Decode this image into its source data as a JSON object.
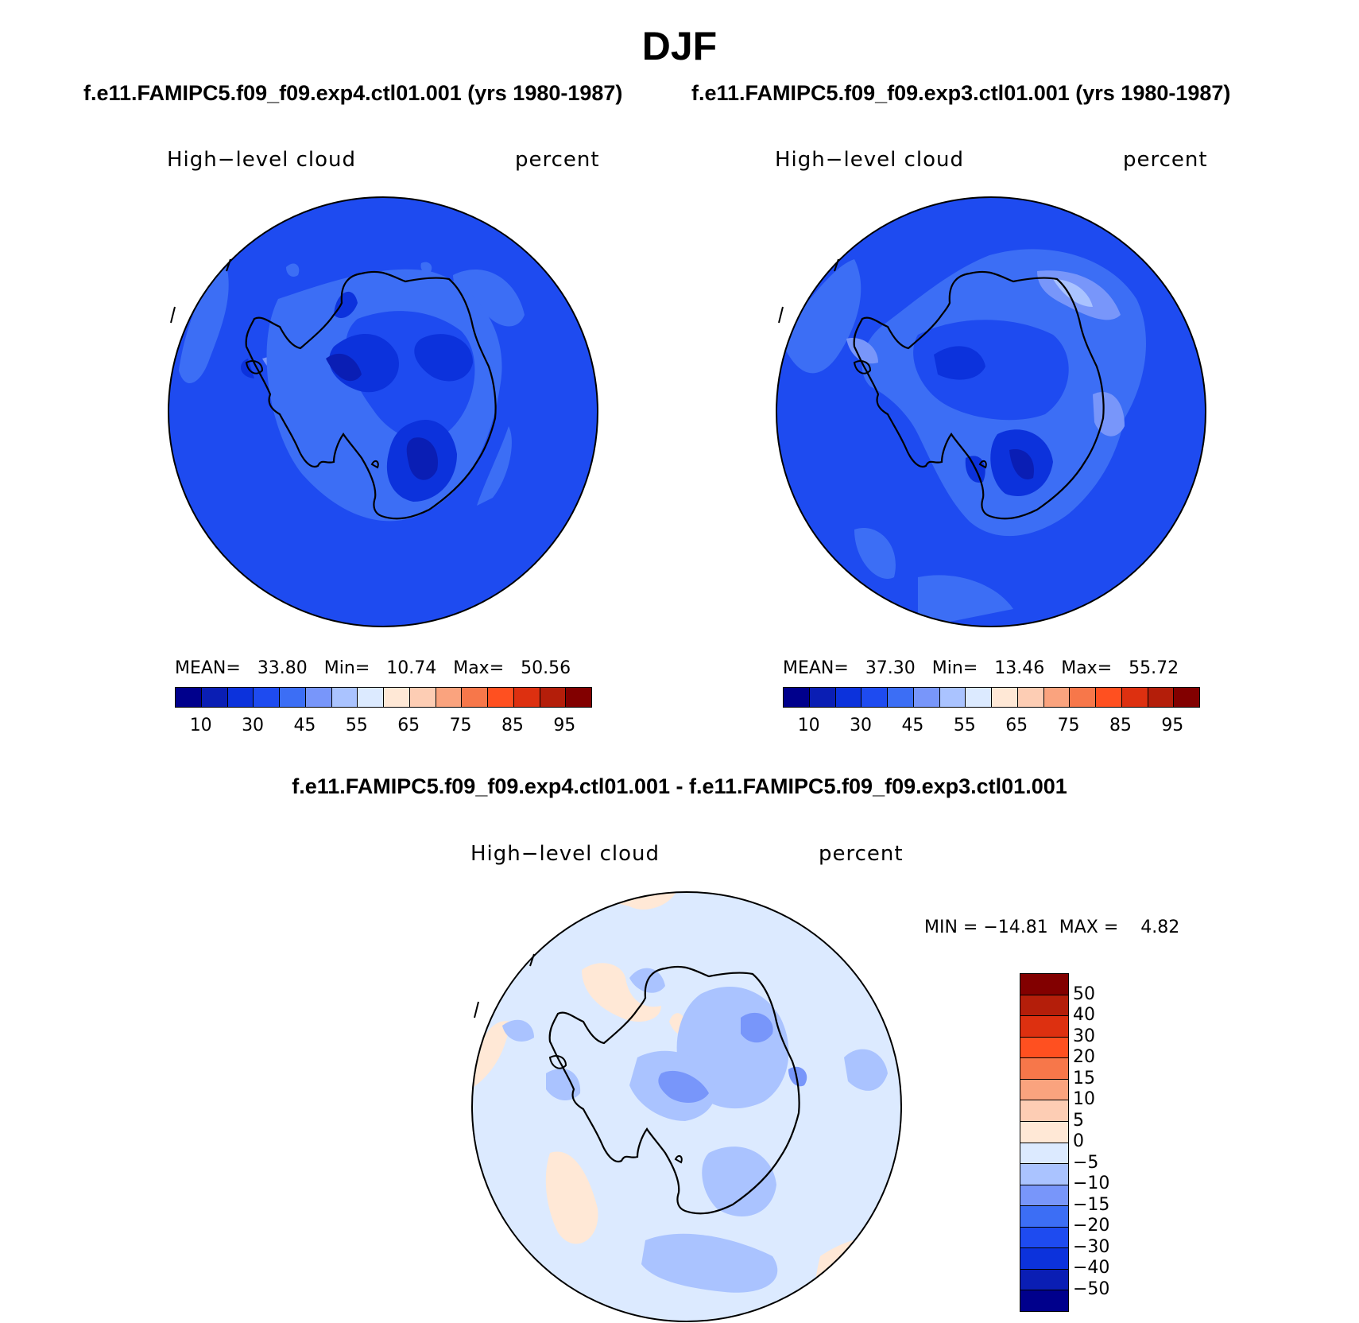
{
  "title": "DJF",
  "panels": [
    {
      "case": "f.e11.FAMIPC5.f09_f09.exp4.ctl01.001 (yrs 1980-1987)",
      "variable": "High−level cloud",
      "units": "percent",
      "mean_label": "MEAN=",
      "mean": "33.80",
      "min_label": "Min=",
      "min": "10.74",
      "max_label": "Max=",
      "max": "50.56"
    },
    {
      "case": "f.e11.FAMIPC5.f09_f09.exp3.ctl01.001 (yrs 1980-1987)",
      "variable": "High−level cloud",
      "units": "percent",
      "mean_label": "MEAN=",
      "mean": "37.30",
      "min_label": "Min=",
      "min": "13.46",
      "max_label": "Max=",
      "max": "55.72"
    }
  ],
  "abs_colorbar": {
    "colors": [
      "#00008c",
      "#0a1eb4",
      "#0c32dc",
      "#1e4bf0",
      "#3c6ef5",
      "#7896fa",
      "#aac3ff",
      "#dceaff",
      "#ffe8d6",
      "#fdcdb4",
      "#faa37e",
      "#f7774a",
      "#ff5020",
      "#dd3010",
      "#b41e0a",
      "#820000"
    ],
    "labels": [
      "10",
      "30",
      "45",
      "55",
      "65",
      "75",
      "85",
      "95"
    ]
  },
  "diff": {
    "title": "f.e11.FAMIPC5.f09_f09.exp4.ctl01.001 - f.e11.FAMIPC5.f09_f09.exp3.ctl01.001",
    "variable": "High−level cloud",
    "units": "percent",
    "minmax": "MIN = −14.81  MAX =    4.82",
    "colors_top_to_bottom": [
      "#820000",
      "#b41e0a",
      "#dd3010",
      "#ff5020",
      "#f7774a",
      "#faa37e",
      "#fdcdb4",
      "#ffe8d6",
      "#dceaff",
      "#aac3ff",
      "#7896fa",
      "#3c6ef5",
      "#1e4bf0",
      "#0c32dc",
      "#0a1eb4",
      "#00008c"
    ],
    "labels": [
      "50",
      "40",
      "30",
      "20",
      "15",
      "10",
      "5",
      "0",
      "−5",
      "−10",
      "−15",
      "−20",
      "−30",
      "−40",
      "−50"
    ]
  }
}
